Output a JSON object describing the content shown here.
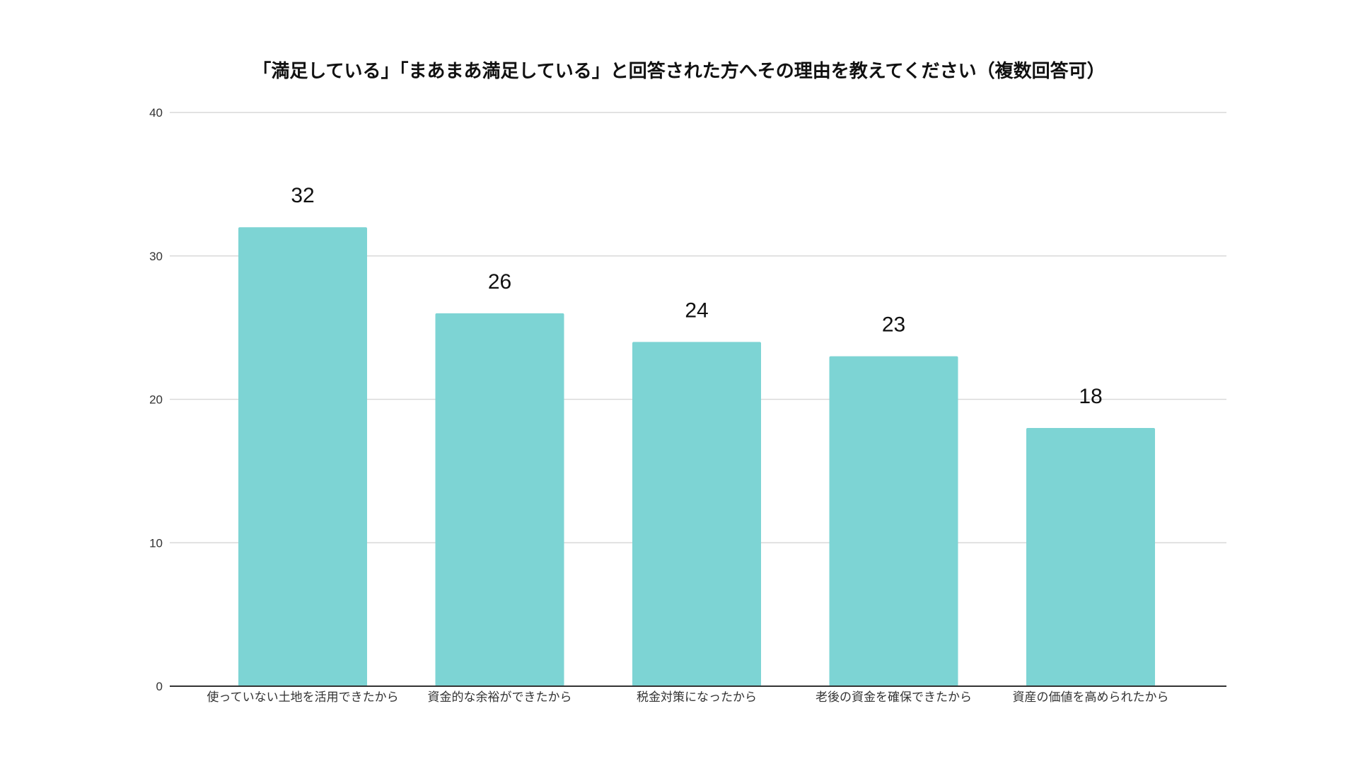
{
  "chart_data": {
    "type": "bar",
    "title": "「満足している」「まあまあ満足している」と回答された方へその理由を教えてください（複数回答可）",
    "xlabel": "",
    "ylabel": "",
    "categories": [
      "使っていない土地を活用できたから",
      "資金的な余裕ができたから",
      "税金対策になったから",
      "老後の資金を確保できたから",
      "資産の価値を高められたから"
    ],
    "values": [
      32,
      26,
      24,
      23,
      18
    ],
    "ylim": [
      0,
      40
    ],
    "yticks": [
      0,
      10,
      20,
      30,
      40
    ],
    "grid": true,
    "legend": "none",
    "data_labels": true,
    "bar_color": "#7dd4d4",
    "grid_color": "#d9d9d9",
    "axis_color": "#333333"
  }
}
